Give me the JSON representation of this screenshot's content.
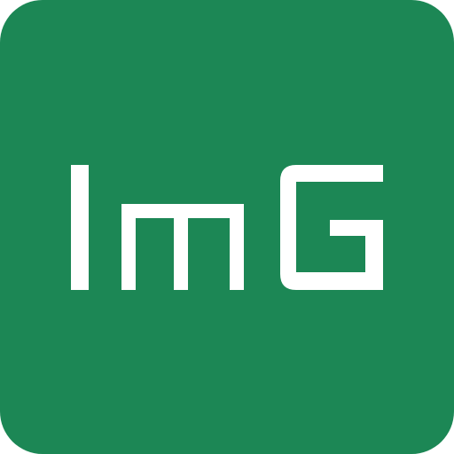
{
  "logo": {
    "text": "ImG",
    "background_color": "#1c8755",
    "letter_color": "#ffffff"
  }
}
